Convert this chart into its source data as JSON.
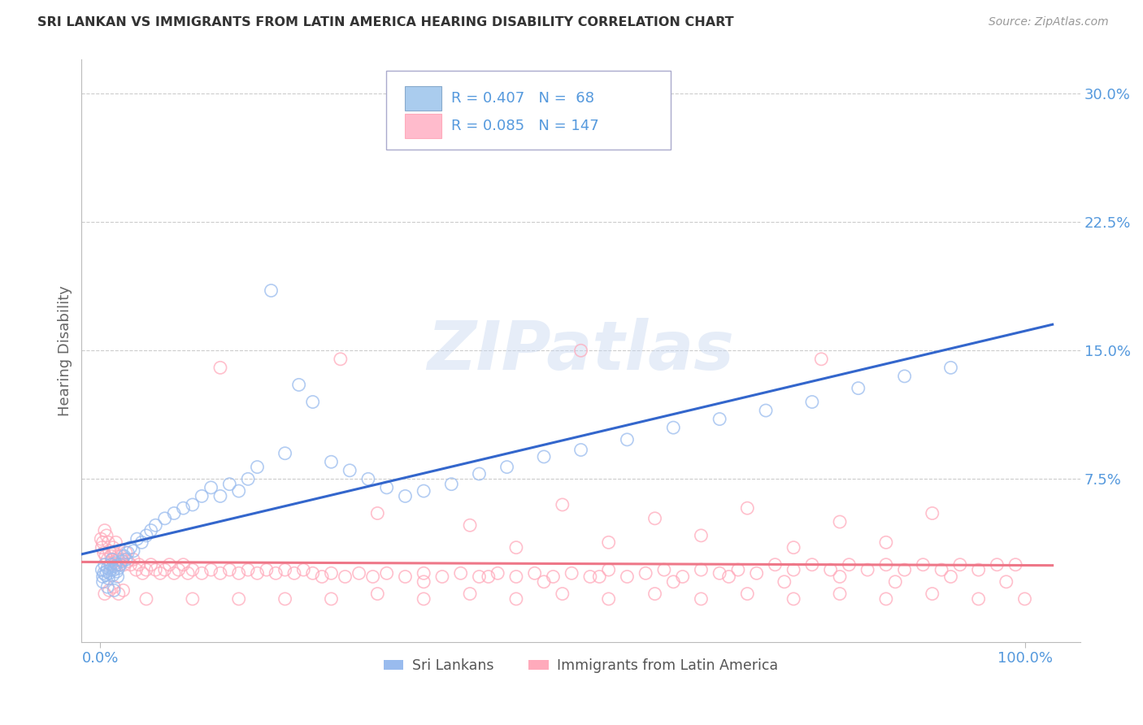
{
  "title": "SRI LANKAN VS IMMIGRANTS FROM LATIN AMERICA HEARING DISABILITY CORRELATION CHART",
  "source": "Source: ZipAtlas.com",
  "ylabel": "Hearing Disability",
  "watermark": "ZIPatlas",
  "group1_label": "Sri Lankans",
  "group1_color": "#99BBEE",
  "group1_line_color": "#3366CC",
  "group1_R": 0.407,
  "group1_N": 68,
  "group2_label": "Immigrants from Latin America",
  "group2_color": "#FFAABB",
  "group2_line_color": "#EE7788",
  "group2_R": 0.085,
  "group2_N": 147,
  "background_color": "#FFFFFF",
  "grid_color": "#CCCCCC",
  "axis_color": "#5599DD",
  "title_color": "#333333",
  "ylim": [
    -0.02,
    0.32
  ],
  "xlim": [
    -0.02,
    1.06
  ],
  "ytick_vals": [
    0.075,
    0.15,
    0.225,
    0.3
  ],
  "ytick_labels": [
    "7.5%",
    "15.0%",
    "22.5%",
    "30.0%"
  ],
  "xtick_vals": [
    0.0,
    1.0
  ],
  "xtick_labels": [
    "0.0%",
    "100.0%"
  ],
  "sri_x": [
    0.002,
    0.003,
    0.004,
    0.005,
    0.006,
    0.007,
    0.008,
    0.009,
    0.01,
    0.011,
    0.012,
    0.013,
    0.014,
    0.015,
    0.016,
    0.017,
    0.018,
    0.019,
    0.02,
    0.022,
    0.024,
    0.026,
    0.028,
    0.03,
    0.033,
    0.036,
    0.04,
    0.045,
    0.05,
    0.055,
    0.06,
    0.07,
    0.08,
    0.09,
    0.1,
    0.11,
    0.12,
    0.13,
    0.14,
    0.15,
    0.16,
    0.17,
    0.185,
    0.2,
    0.215,
    0.23,
    0.25,
    0.27,
    0.29,
    0.31,
    0.33,
    0.35,
    0.38,
    0.41,
    0.44,
    0.48,
    0.52,
    0.57,
    0.62,
    0.67,
    0.72,
    0.77,
    0.82,
    0.87,
    0.92,
    0.003,
    0.008,
    0.015
  ],
  "sri_y": [
    0.022,
    0.018,
    0.02,
    0.025,
    0.019,
    0.021,
    0.023,
    0.017,
    0.02,
    0.022,
    0.025,
    0.028,
    0.019,
    0.022,
    0.024,
    0.026,
    0.021,
    0.018,
    0.023,
    0.025,
    0.027,
    0.03,
    0.028,
    0.032,
    0.035,
    0.033,
    0.04,
    0.038,
    0.042,
    0.045,
    0.048,
    0.052,
    0.055,
    0.058,
    0.06,
    0.065,
    0.07,
    0.065,
    0.072,
    0.068,
    0.075,
    0.082,
    0.185,
    0.09,
    0.13,
    0.12,
    0.085,
    0.08,
    0.075,
    0.07,
    0.065,
    0.068,
    0.072,
    0.078,
    0.082,
    0.088,
    0.092,
    0.098,
    0.105,
    0.11,
    0.115,
    0.12,
    0.128,
    0.135,
    0.14,
    0.015,
    0.012,
    0.01
  ],
  "lat_x": [
    0.001,
    0.002,
    0.003,
    0.004,
    0.005,
    0.006,
    0.007,
    0.008,
    0.009,
    0.01,
    0.011,
    0.012,
    0.013,
    0.014,
    0.015,
    0.016,
    0.017,
    0.018,
    0.019,
    0.02,
    0.021,
    0.022,
    0.024,
    0.026,
    0.028,
    0.03,
    0.033,
    0.036,
    0.039,
    0.042,
    0.046,
    0.05,
    0.055,
    0.06,
    0.065,
    0.07,
    0.075,
    0.08,
    0.085,
    0.09,
    0.095,
    0.1,
    0.11,
    0.12,
    0.13,
    0.14,
    0.15,
    0.16,
    0.17,
    0.18,
    0.19,
    0.2,
    0.21,
    0.22,
    0.23,
    0.24,
    0.25,
    0.265,
    0.28,
    0.295,
    0.31,
    0.33,
    0.35,
    0.37,
    0.39,
    0.41,
    0.43,
    0.45,
    0.47,
    0.49,
    0.51,
    0.53,
    0.55,
    0.57,
    0.59,
    0.61,
    0.63,
    0.65,
    0.67,
    0.69,
    0.71,
    0.73,
    0.75,
    0.77,
    0.79,
    0.81,
    0.83,
    0.85,
    0.87,
    0.89,
    0.91,
    0.93,
    0.95,
    0.97,
    0.99,
    0.005,
    0.01,
    0.015,
    0.02,
    0.025,
    0.05,
    0.1,
    0.15,
    0.2,
    0.25,
    0.3,
    0.35,
    0.4,
    0.45,
    0.5,
    0.55,
    0.6,
    0.65,
    0.7,
    0.75,
    0.8,
    0.85,
    0.9,
    0.95,
    1.0,
    0.3,
    0.4,
    0.5,
    0.6,
    0.7,
    0.8,
    0.9,
    0.45,
    0.55,
    0.65,
    0.75,
    0.85,
    0.35,
    0.42,
    0.48,
    0.54,
    0.62,
    0.68,
    0.74,
    0.8,
    0.86,
    0.92,
    0.98,
    0.13,
    0.26,
    0.52,
    0.78
  ],
  "lat_y": [
    0.04,
    0.035,
    0.038,
    0.032,
    0.045,
    0.03,
    0.042,
    0.028,
    0.038,
    0.033,
    0.025,
    0.03,
    0.028,
    0.035,
    0.032,
    0.027,
    0.038,
    0.025,
    0.03,
    0.028,
    0.025,
    0.03,
    0.028,
    0.025,
    0.032,
    0.027,
    0.025,
    0.028,
    0.022,
    0.025,
    0.02,
    0.022,
    0.025,
    0.022,
    0.02,
    0.022,
    0.025,
    0.02,
    0.022,
    0.025,
    0.02,
    0.022,
    0.02,
    0.022,
    0.02,
    0.022,
    0.02,
    0.022,
    0.02,
    0.022,
    0.02,
    0.022,
    0.02,
    0.022,
    0.02,
    0.018,
    0.02,
    0.018,
    0.02,
    0.018,
    0.02,
    0.018,
    0.02,
    0.018,
    0.02,
    0.018,
    0.02,
    0.018,
    0.02,
    0.018,
    0.02,
    0.018,
    0.022,
    0.018,
    0.02,
    0.022,
    0.018,
    0.022,
    0.02,
    0.022,
    0.02,
    0.025,
    0.022,
    0.025,
    0.022,
    0.025,
    0.022,
    0.025,
    0.022,
    0.025,
    0.022,
    0.025,
    0.022,
    0.025,
    0.025,
    0.008,
    0.01,
    0.012,
    0.008,
    0.01,
    0.005,
    0.005,
    0.005,
    0.005,
    0.005,
    0.008,
    0.005,
    0.008,
    0.005,
    0.008,
    0.005,
    0.008,
    0.005,
    0.008,
    0.005,
    0.008,
    0.005,
    0.008,
    0.005,
    0.005,
    0.055,
    0.048,
    0.06,
    0.052,
    0.058,
    0.05,
    0.055,
    0.035,
    0.038,
    0.042,
    0.035,
    0.038,
    0.015,
    0.018,
    0.015,
    0.018,
    0.015,
    0.018,
    0.015,
    0.018,
    0.015,
    0.018,
    0.015,
    0.14,
    0.145,
    0.15,
    0.145
  ]
}
